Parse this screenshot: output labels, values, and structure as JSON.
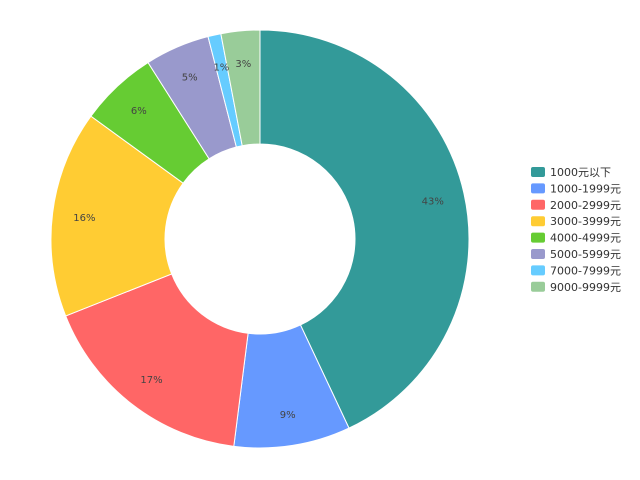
{
  "chart_data": {
    "type": "pie",
    "donut": true,
    "legend_position": "right",
    "slices": [
      {
        "label": "1000元以下",
        "value": 43,
        "display": "43%",
        "color": "#339a99"
      },
      {
        "label": "1000-1999元",
        "value": 9,
        "display": "9%",
        "color": "#6699ff"
      },
      {
        "label": "2000-2999元",
        "value": 17,
        "display": "17%",
        "color": "#ff6666"
      },
      {
        "label": "3000-3999元",
        "value": 16,
        "display": "16%",
        "color": "#ffcc33"
      },
      {
        "label": "4000-4999元",
        "value": 6,
        "display": "6%",
        "color": "#66cc33"
      },
      {
        "label": "5000-5999元",
        "value": 5,
        "display": "5%",
        "color": "#9999cc"
      },
      {
        "label": "7000-7999元",
        "value": 1,
        "display": "1%",
        "color": "#66ccff"
      },
      {
        "label": "9000-9999元",
        "value": 3,
        "display": "3%",
        "color": "#99cc99"
      }
    ]
  }
}
